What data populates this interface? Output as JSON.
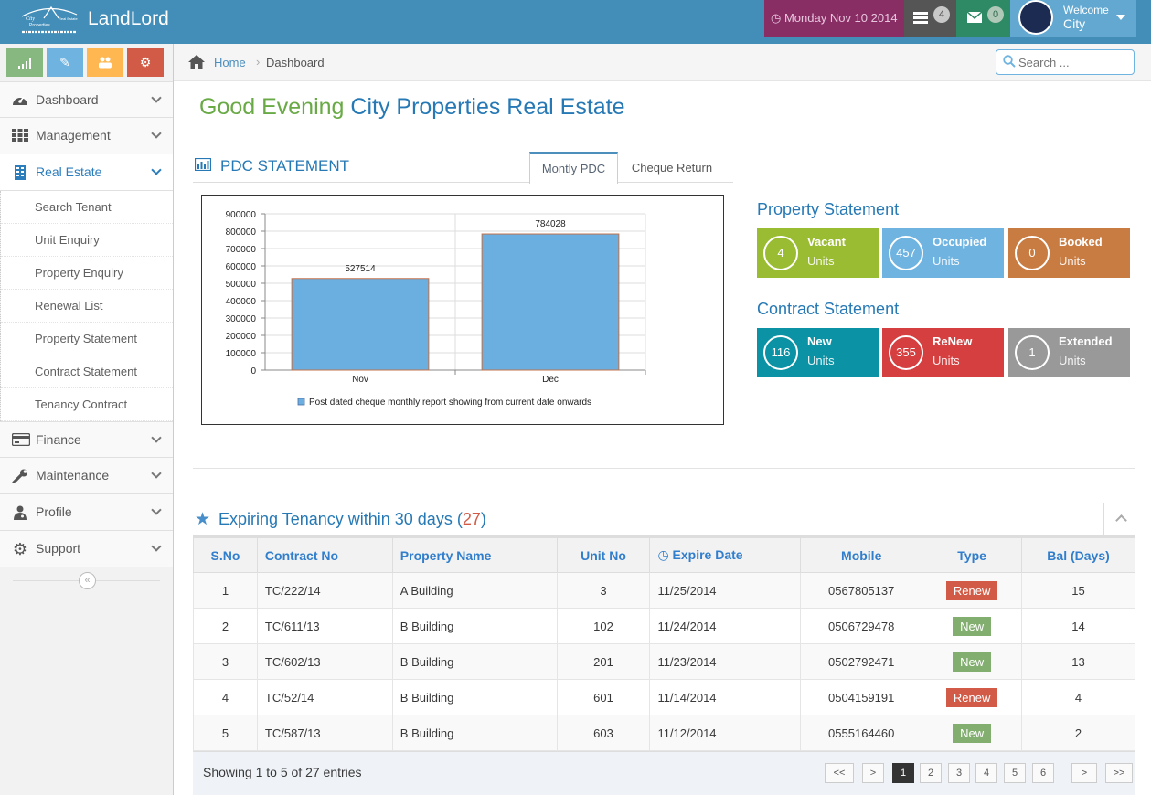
{
  "navbar": {
    "app_name": "LandLord",
    "logo_text": "City Properties Real Estate",
    "date": "Monday Nov 10 2014",
    "tasks_count": "4",
    "messages_count": "0",
    "welcome": "Welcome",
    "username": "City"
  },
  "sidebar": {
    "shortcuts": [
      {
        "icon": "signal-icon",
        "color": "#87b87f"
      },
      {
        "icon": "pencil-icon",
        "color": "#6fb3e0"
      },
      {
        "icon": "users-icon",
        "color": "#ffb752"
      },
      {
        "icon": "cogs-icon",
        "color": "#d15b47"
      }
    ],
    "menu": [
      {
        "label": "Dashboard",
        "icon": "dashboard-icon"
      },
      {
        "label": "Management",
        "icon": "grid-icon"
      },
      {
        "label": "Real Estate",
        "icon": "building-icon"
      }
    ],
    "submenu": [
      "Search Tenant",
      "Unit Enquiry",
      "Property Enquiry",
      "Renewal List",
      "Property Statement",
      "Contract Statement",
      "Tenancy Contract"
    ],
    "menu_bottom": [
      {
        "label": "Finance",
        "icon": "credit-card-icon"
      },
      {
        "label": "Maintenance",
        "icon": "wrench-icon"
      },
      {
        "label": "Profile",
        "icon": "user-doctor-icon"
      },
      {
        "label": "Support",
        "icon": "cog-icon"
      }
    ]
  },
  "breadcrumb": {
    "home": "Home",
    "current": "Dashboard"
  },
  "search": {
    "placeholder": "Search ..."
  },
  "greeting": {
    "prefix": "Good Evening",
    "company": "City Properties Real Estate"
  },
  "pdc": {
    "title": "PDC STATEMENT",
    "tabs": [
      "Montly PDC",
      "Cheque Return"
    ]
  },
  "chart_data": {
    "type": "bar",
    "categories": [
      "Nov",
      "Dec"
    ],
    "values": [
      527514,
      784028
    ],
    "ylim": [
      0,
      900000
    ],
    "yticks": [
      0,
      100000,
      200000,
      300000,
      400000,
      500000,
      600000,
      700000,
      800000,
      900000
    ],
    "legend": "Post dated cheque monthly report showing from current date onwards",
    "bar_color": "#6aafe0",
    "grid": true
  },
  "property_statement": {
    "title": "Property Statement",
    "items": [
      {
        "count": "4",
        "label": "Vacant",
        "unit": "Units",
        "color": "#9abc32"
      },
      {
        "count": "457",
        "label": "Occupied",
        "unit": "Units",
        "color": "#6fb3e0"
      },
      {
        "count": "0",
        "label": "Booked",
        "unit": "Units",
        "color": "#c97c42"
      }
    ]
  },
  "contract_statement": {
    "title": "Contract Statement",
    "items": [
      {
        "count": "116",
        "label": "New",
        "unit": "Units",
        "color": "#0b93a5"
      },
      {
        "count": "355",
        "label": "ReNew",
        "unit": "Units",
        "color": "#d53f40"
      },
      {
        "count": "1",
        "label": "Extended",
        "unit": "Units",
        "color": "#999999"
      }
    ]
  },
  "expiring": {
    "title": "Expiring Tenancy within 30 days",
    "count": "27",
    "columns": [
      "S.No",
      "Contract No",
      "Property Name",
      "Unit No",
      "Expire Date",
      "Mobile",
      "Type",
      "Bal (Days)"
    ],
    "rows": [
      {
        "sno": "1",
        "contract": "TC/222/14",
        "property": "A Building",
        "unit": "3",
        "expire": "11/25/2014",
        "mobile": "0567805137",
        "type": "Renew",
        "bal": "15"
      },
      {
        "sno": "2",
        "contract": "TC/611/13",
        "property": "B Building",
        "unit": "102",
        "expire": "11/24/2014",
        "mobile": "0506729478",
        "type": "New",
        "bal": "14"
      },
      {
        "sno": "3",
        "contract": "TC/602/13",
        "property": "B Building",
        "unit": "201",
        "expire": "11/23/2014",
        "mobile": "0502792471",
        "type": "New",
        "bal": "13"
      },
      {
        "sno": "4",
        "contract": "TC/52/14",
        "property": "B Building",
        "unit": "601",
        "expire": "11/14/2014",
        "mobile": "0504159191",
        "type": "Renew",
        "bal": "4"
      },
      {
        "sno": "5",
        "contract": "TC/587/13",
        "property": "B Building",
        "unit": "603",
        "expire": "11/12/2014",
        "mobile": "0555164460",
        "type": "New",
        "bal": "2"
      }
    ],
    "entries_info": "Showing 1 to 5 of 27 entries",
    "pagination": [
      "<<",
      ">",
      "1",
      "2",
      "3",
      "4",
      "5",
      "6",
      ">",
      ">>"
    ],
    "active_page": "1"
  }
}
